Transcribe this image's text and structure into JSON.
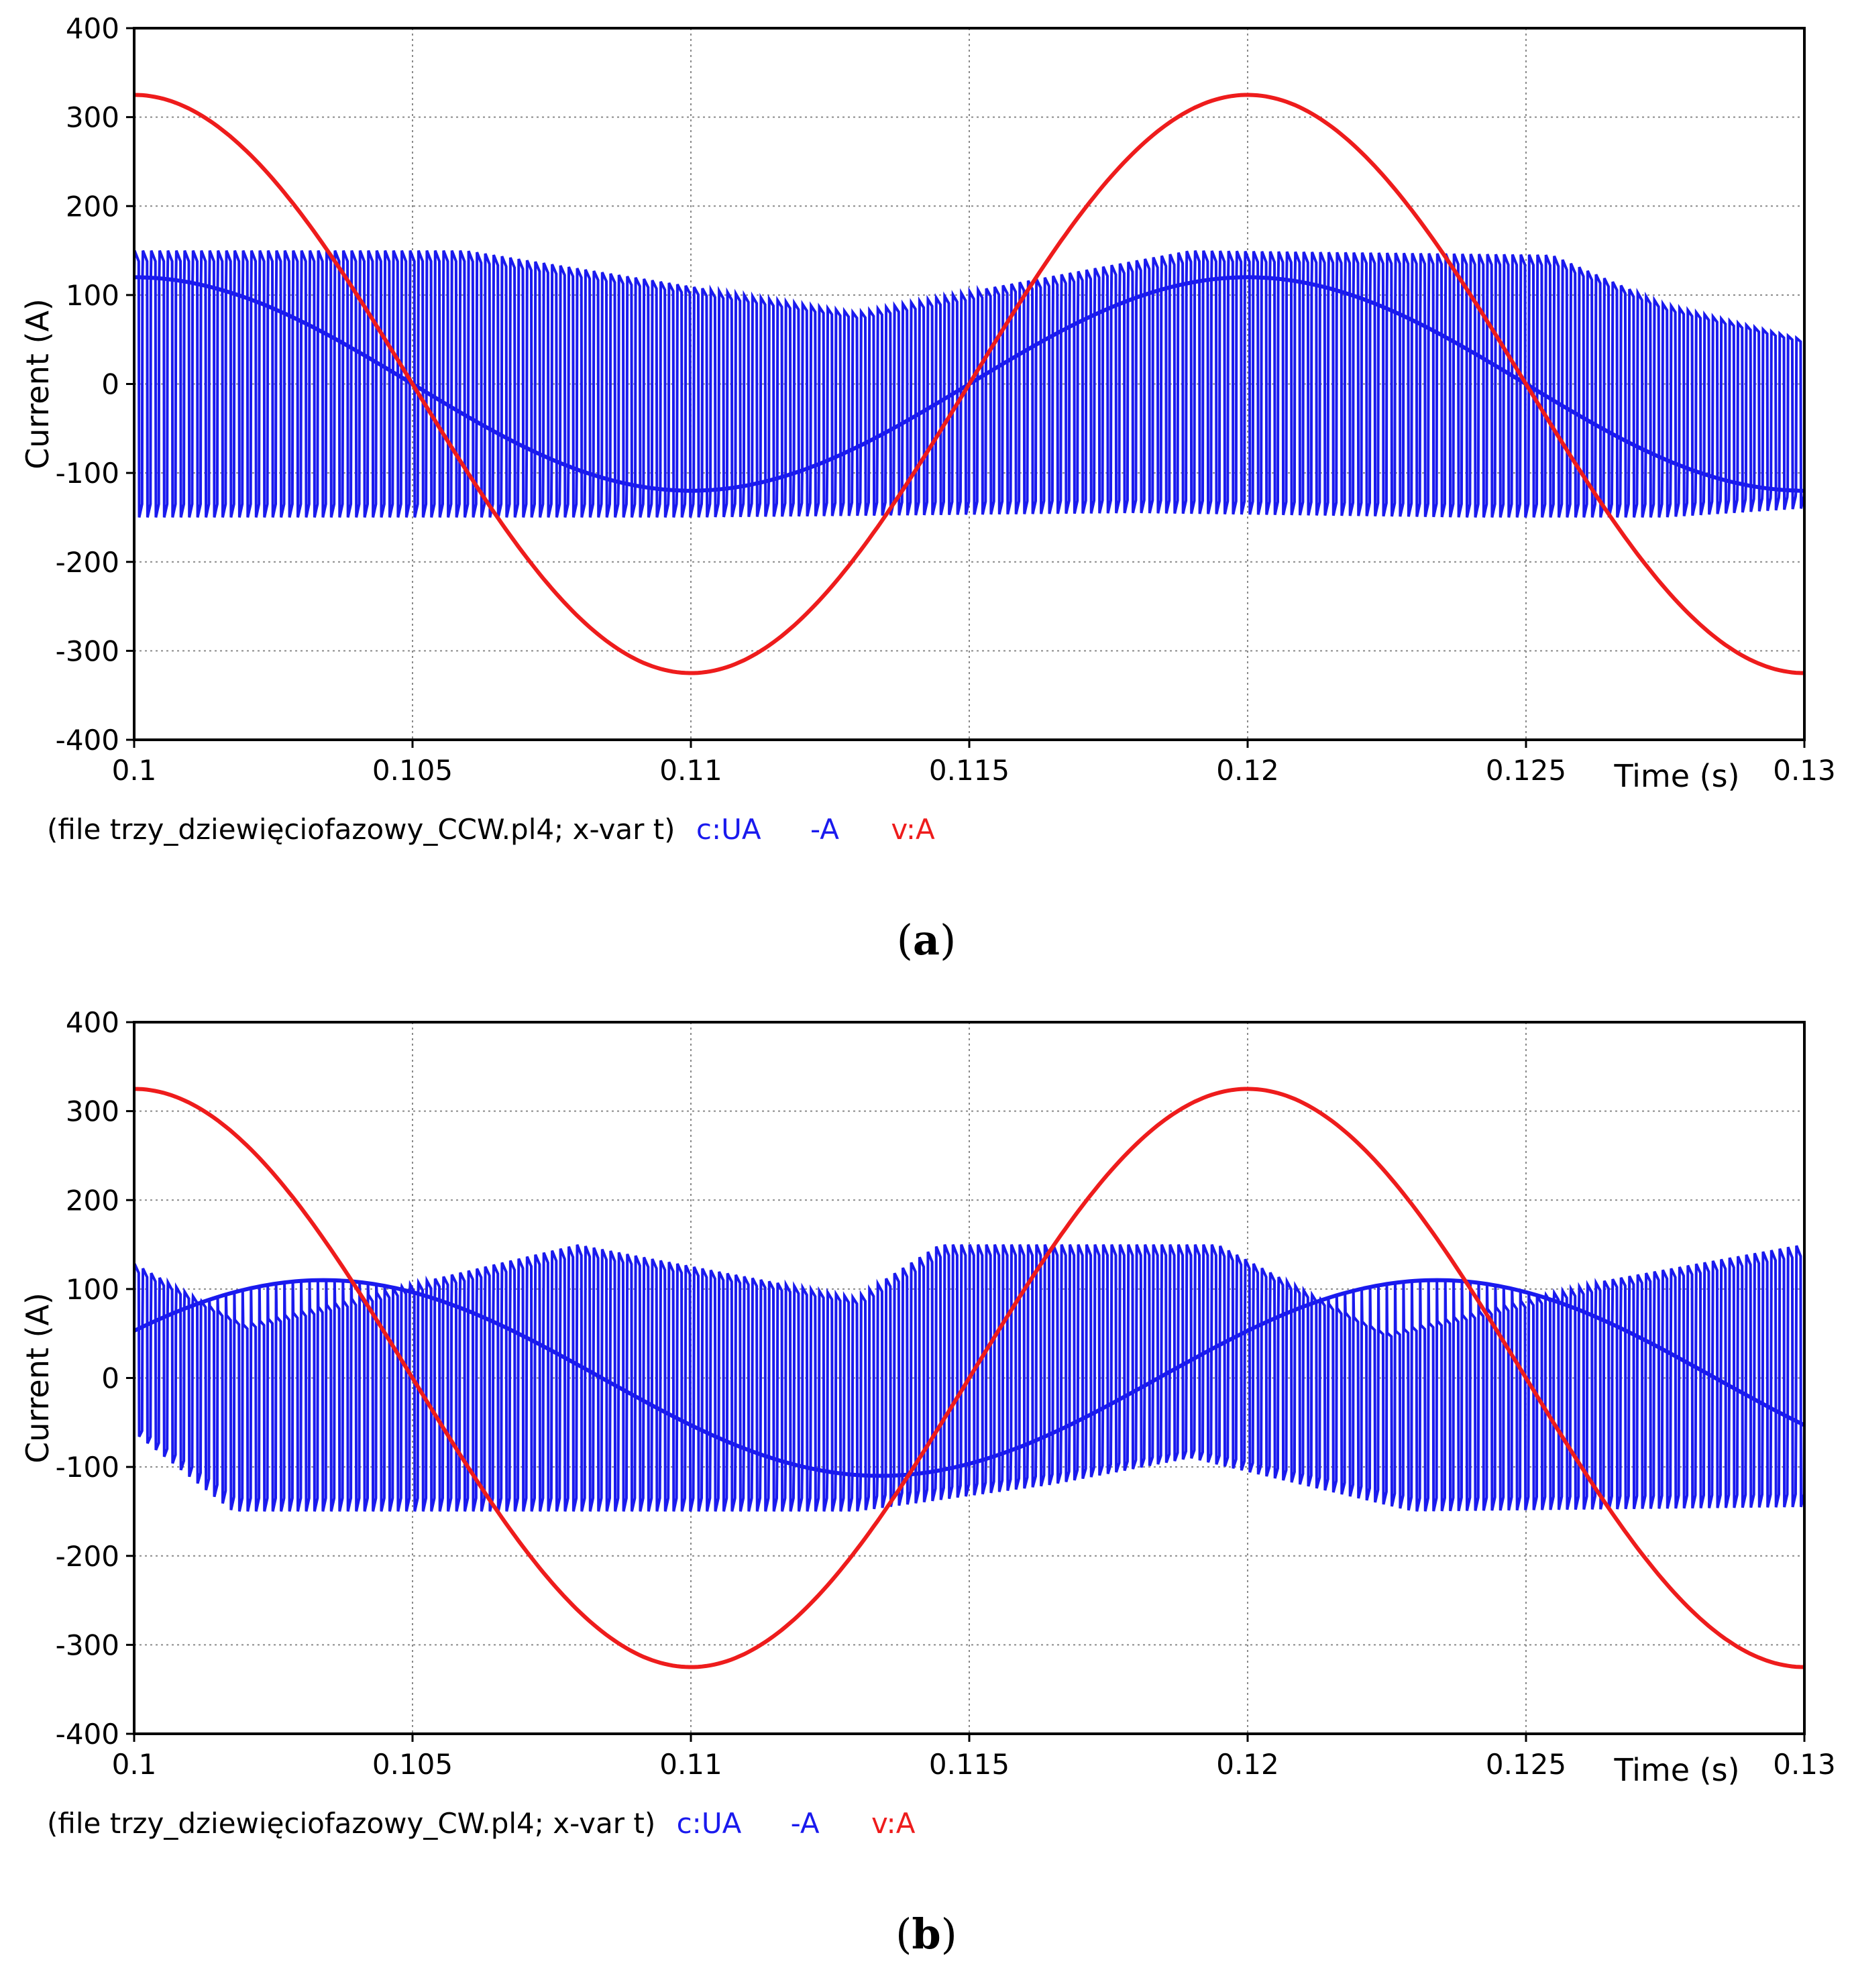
{
  "chart_data": [
    {
      "type": "line",
      "panel_label": "a",
      "file_caption": "(file trzy_dziewięciofazowy_CCW.pl4; x-var t)",
      "legend": [
        "c:UA",
        "-A",
        "v:A"
      ],
      "xlabel": "Time (s)",
      "ylabel": "Current (A)",
      "xlim": [
        0.1,
        0.13
      ],
      "ylim": [
        -400,
        400
      ],
      "x_ticks": [
        "0.1",
        "0.105",
        "0.11",
        "0.115",
        "0.12",
        "0.125",
        "0.13"
      ],
      "y_ticks": [
        "400",
        "300",
        "200",
        "100",
        "0",
        "-100",
        "-200",
        "-300",
        "-400"
      ],
      "grid": true,
      "series": [
        {
          "name": "v:A",
          "color": "#ee1c1c",
          "kind": "sinusoid",
          "amplitude": 325,
          "period": 0.02,
          "phase_peak_t": 0.1,
          "description_values": [
            {
              "t": 0.1,
              "v": 325
            },
            {
              "t": 0.105,
              "v": 0
            },
            {
              "t": 0.11,
              "v": -325
            },
            {
              "t": 0.115,
              "v": 0
            },
            {
              "t": 0.12,
              "v": 325
            },
            {
              "t": 0.125,
              "v": 0
            },
            {
              "t": 0.13,
              "v": -325
            }
          ]
        },
        {
          "name": "c:UA",
          "color": "#1a1aee",
          "kind": "pwm_current",
          "fundamental_amplitude": 120,
          "fundamental_period": 0.02,
          "fundamental_peak_t": 0.1,
          "switch_count": 200,
          "envelope_upper": [
            {
              "t": 0.1,
              "v": 150
            },
            {
              "t": 0.106,
              "v": 150
            },
            {
              "t": 0.113,
              "v": 80
            },
            {
              "t": 0.119,
              "v": 150
            },
            {
              "t": 0.1255,
              "v": 145
            },
            {
              "t": 0.1275,
              "v": 90
            },
            {
              "t": 0.13,
              "v": 50
            }
          ],
          "envelope_lower": [
            {
              "t": 0.1,
              "v": -150
            },
            {
              "t": 0.105,
              "v": -150
            },
            {
              "t": 0.11,
              "v": -150
            },
            {
              "t": 0.118,
              "v": -145
            },
            {
              "t": 0.124,
              "v": -150
            },
            {
              "t": 0.1275,
              "v": -150
            },
            {
              "t": 0.13,
              "v": -140
            }
          ]
        }
      ]
    },
    {
      "type": "line",
      "panel_label": "b",
      "file_caption": "(file trzy_dziewięciofazowy_CW.pl4; x-var t)",
      "legend": [
        "c:UA",
        "-A",
        "v:A"
      ],
      "xlabel": "Time (s)",
      "ylabel": "Current (A)",
      "xlim": [
        0.1,
        0.13
      ],
      "ylim": [
        -400,
        400
      ],
      "x_ticks": [
        "0.1",
        "0.105",
        "0.11",
        "0.115",
        "0.12",
        "0.125",
        "0.13"
      ],
      "y_ticks": [
        "400",
        "300",
        "200",
        "100",
        "0",
        "-100",
        "-200",
        "-300",
        "-400"
      ],
      "grid": true,
      "series": [
        {
          "name": "v:A",
          "color": "#ee1c1c",
          "kind": "sinusoid",
          "amplitude": 325,
          "period": 0.02,
          "phase_peak_t": 0.1,
          "description_values": [
            {
              "t": 0.1,
              "v": 325
            },
            {
              "t": 0.105,
              "v": 0
            },
            {
              "t": 0.11,
              "v": -325
            },
            {
              "t": 0.115,
              "v": 0
            },
            {
              "t": 0.12,
              "v": 325
            },
            {
              "t": 0.125,
              "v": 0
            },
            {
              "t": 0.13,
              "v": -325
            }
          ]
        },
        {
          "name": "c:UA",
          "color": "#1a1aee",
          "kind": "pwm_current",
          "fundamental_amplitude": 110,
          "fundamental_period": 0.02,
          "fundamental_peak_t": 0.1034,
          "switch_count": 200,
          "envelope_upper": [
            {
              "t": 0.1,
              "v": 130
            },
            {
              "t": 0.102,
              "v": 60
            },
            {
              "t": 0.108,
              "v": 150
            },
            {
              "t": 0.113,
              "v": 90
            },
            {
              "t": 0.1145,
              "v": 150
            },
            {
              "t": 0.1195,
              "v": 150
            },
            {
              "t": 0.1225,
              "v": 50
            },
            {
              "t": 0.1265,
              "v": 110
            },
            {
              "t": 0.13,
              "v": 150
            }
          ],
          "envelope_lower": [
            {
              "t": 0.1,
              "v": -60
            },
            {
              "t": 0.1018,
              "v": -150
            },
            {
              "t": 0.11,
              "v": -150
            },
            {
              "t": 0.113,
              "v": -150
            },
            {
              "t": 0.1165,
              "v": -120
            },
            {
              "t": 0.119,
              "v": -90
            },
            {
              "t": 0.123,
              "v": -150
            },
            {
              "t": 0.13,
              "v": -145
            }
          ]
        }
      ]
    }
  ]
}
